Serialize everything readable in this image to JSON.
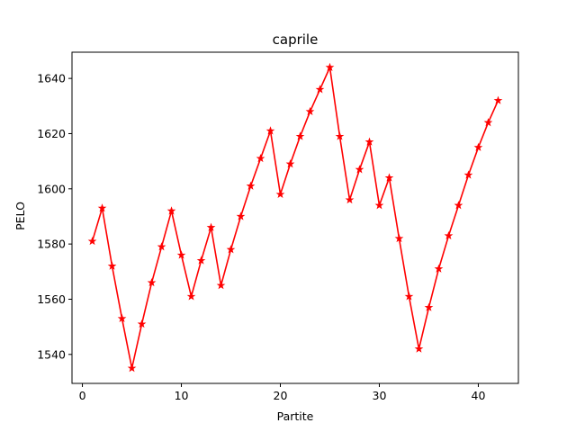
{
  "chart_data": {
    "type": "line",
    "title": "caprile",
    "xlabel": "Partite",
    "ylabel": "PELO",
    "xlim": [
      -1.05,
      44.05
    ],
    "ylim": [
      1529.5,
      1649.5
    ],
    "xticks": [
      0,
      10,
      20,
      30,
      40
    ],
    "yticks": [
      1540,
      1560,
      1580,
      1600,
      1620,
      1640
    ],
    "grid": false,
    "series": [
      {
        "color": "#ff0000",
        "marker": "star",
        "x": [
          1,
          2,
          3,
          4,
          5,
          6,
          7,
          8,
          9,
          10,
          11,
          12,
          13,
          14,
          15,
          16,
          17,
          18,
          19,
          20,
          21,
          22,
          23,
          24,
          25,
          26,
          27,
          28,
          29,
          30,
          31,
          32,
          33,
          34,
          35,
          36,
          37,
          38,
          39,
          40,
          41,
          42
        ],
        "y": [
          1581,
          1593,
          1572,
          1553,
          1535,
          1551,
          1566,
          1579,
          1592,
          1576,
          1561,
          1574,
          1586,
          1565,
          1578,
          1590,
          1601,
          1611,
          1621,
          1598,
          1609,
          1619,
          1628,
          1636,
          1644,
          1619,
          1596,
          1607,
          1617,
          1594,
          1604,
          1582,
          1561,
          1542,
          1557,
          1571,
          1583,
          1594,
          1605,
          1615,
          1624,
          1632
        ]
      }
    ]
  }
}
